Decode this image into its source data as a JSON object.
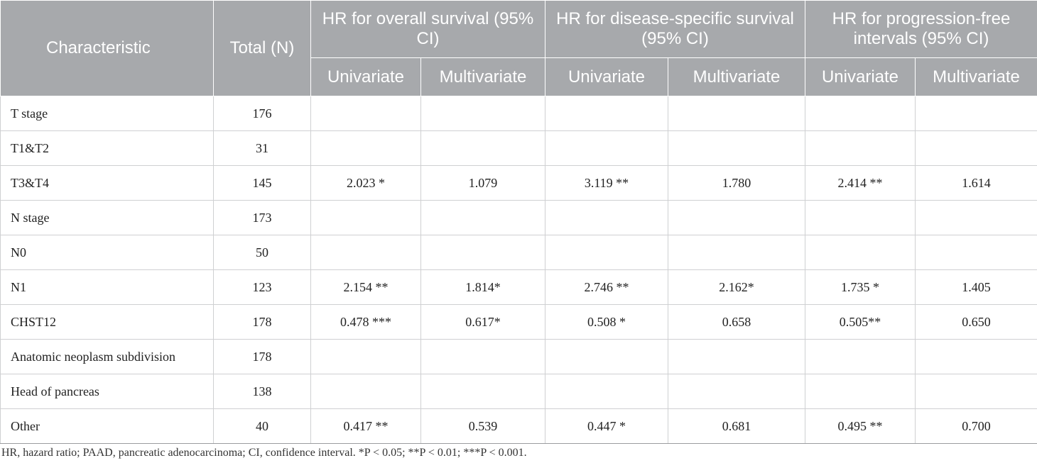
{
  "table": {
    "header": {
      "characteristic": "Characteristic",
      "total": "Total (N)",
      "groups": [
        "HR for overall survival (95% CI)",
        "HR for disease-specific survival (95% CI)",
        "HR for progression-free intervals (95% CI)"
      ],
      "sub": [
        "Univariate",
        "Multivariate",
        "Univariate",
        "Multivariate",
        "Univariate",
        "Multivariate"
      ]
    },
    "rows": [
      {
        "char": "T stage",
        "total": "176",
        "v": [
          "",
          "",
          "",
          "",
          "",
          ""
        ]
      },
      {
        "char": "T1&T2",
        "total": "31",
        "v": [
          "",
          "",
          "",
          "",
          "",
          ""
        ]
      },
      {
        "char": "T3&T4",
        "total": "145",
        "v": [
          "2.023 *",
          "1.079",
          "3.119 **",
          "1.780",
          "2.414 **",
          "1.614"
        ]
      },
      {
        "char": "N stage",
        "total": "173",
        "v": [
          "",
          "",
          "",
          "",
          "",
          ""
        ]
      },
      {
        "char": "N0",
        "total": "50",
        "v": [
          "",
          "",
          "",
          "",
          "",
          ""
        ]
      },
      {
        "char": "N1",
        "total": "123",
        "v": [
          "2.154 **",
          "1.814*",
          "2.746 **",
          "2.162*",
          "1.735 *",
          "1.405"
        ]
      },
      {
        "char": "CHST12",
        "total": "178",
        "v": [
          "0.478 ***",
          "0.617*",
          "0.508 *",
          "0.658",
          "0.505**",
          "0.650"
        ]
      },
      {
        "char": "Anatomic neoplasm subdivision",
        "total": "178",
        "v": [
          "",
          "",
          "",
          "",
          "",
          ""
        ]
      },
      {
        "char": "Head of pancreas",
        "total": "138",
        "v": [
          "",
          "",
          "",
          "",
          "",
          ""
        ]
      },
      {
        "char": "Other",
        "total": "40",
        "v": [
          "0.417 **",
          "0.539",
          "0.447 *",
          "0.681",
          "0.495 **",
          "0.700"
        ]
      }
    ],
    "footnote": "HR, hazard ratio; PAAD, pancreatic adenocarcinoma; CI, confidence interval. *P < 0.05; **P < 0.01; ***P < 0.001."
  },
  "colors": {
    "header_bg": "#a7a9ac",
    "header_text": "#ffffff",
    "grid": "#cfd0d2"
  }
}
